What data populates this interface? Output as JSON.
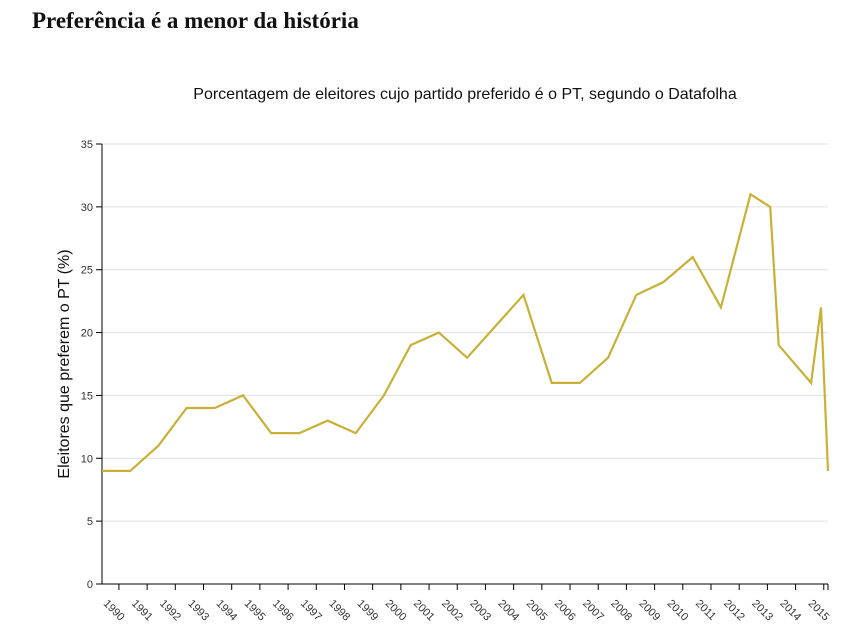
{
  "headline": "Preferência é a menor da história",
  "chart_data": {
    "type": "line",
    "title": "Porcentagem de eleitores cujo partido preferido é o PT, segundo o Datafolha",
    "xlabel": "",
    "ylabel": "Eleitores que preferem o PT (%)",
    "ylim": [
      0,
      35
    ],
    "xlim": [
      1989.4,
      2015.15
    ],
    "yticks": [
      "0",
      "5",
      "10",
      "15",
      "20",
      "25",
      "30",
      "35"
    ],
    "xticks": [
      "1990",
      "1991",
      "1992",
      "1993",
      "1994",
      "1995",
      "1996",
      "1997",
      "1998",
      "1999",
      "2000",
      "2001",
      "2002",
      "2003",
      "2004",
      "2005",
      "2006",
      "2007",
      "2008",
      "2009",
      "2010",
      "2011",
      "2012",
      "2013",
      "2014",
      "2015"
    ],
    "grid": true,
    "color": "#c9b037",
    "series": [
      {
        "name": "PT",
        "x": [
          1989.4,
          1990.4,
          1991.4,
          1992.4,
          1993.4,
          1994.4,
          1995.4,
          1996.4,
          1997.4,
          1998.4,
          1999.4,
          2000.35,
          2001.35,
          2002.35,
          2004.35,
          2005.35,
          2006.35,
          2007.35,
          2008.35,
          2009.3,
          2010.35,
          2011.35,
          2012.4,
          2013.1,
          2013.4,
          2014.55,
          2014.9,
          2015.15
        ],
        "values": [
          9,
          9,
          11,
          14,
          14,
          15,
          12,
          12,
          13,
          12,
          15,
          19,
          20,
          18,
          23,
          16,
          16,
          18,
          23,
          24,
          26,
          22,
          31,
          30,
          19,
          16,
          22,
          9
        ]
      }
    ]
  }
}
